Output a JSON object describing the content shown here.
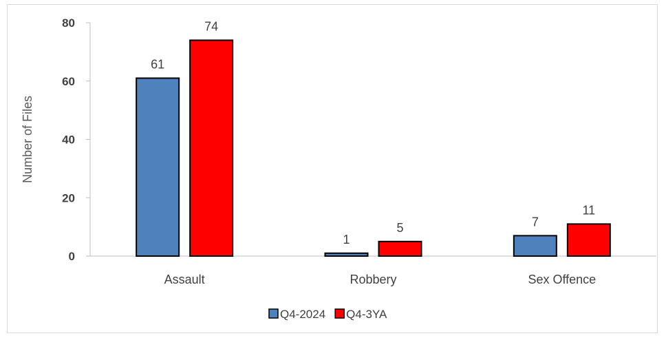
{
  "chart_data": {
    "type": "bar",
    "title": "",
    "xlabel": "",
    "ylabel": "Number of Files",
    "ylim": [
      0,
      80
    ],
    "yticks": [
      0,
      20,
      40,
      60,
      80
    ],
    "grid": false,
    "legend_position": "bottom",
    "categories": [
      "Assault",
      "Robbery",
      "Sex Offence"
    ],
    "series": [
      {
        "name": "Q4-2024",
        "values": [
          61,
          1,
          7
        ],
        "color": "#4f81bd"
      },
      {
        "name": "Q4-3YA",
        "values": [
          74,
          5,
          11
        ],
        "color": "#ff0000"
      }
    ]
  }
}
